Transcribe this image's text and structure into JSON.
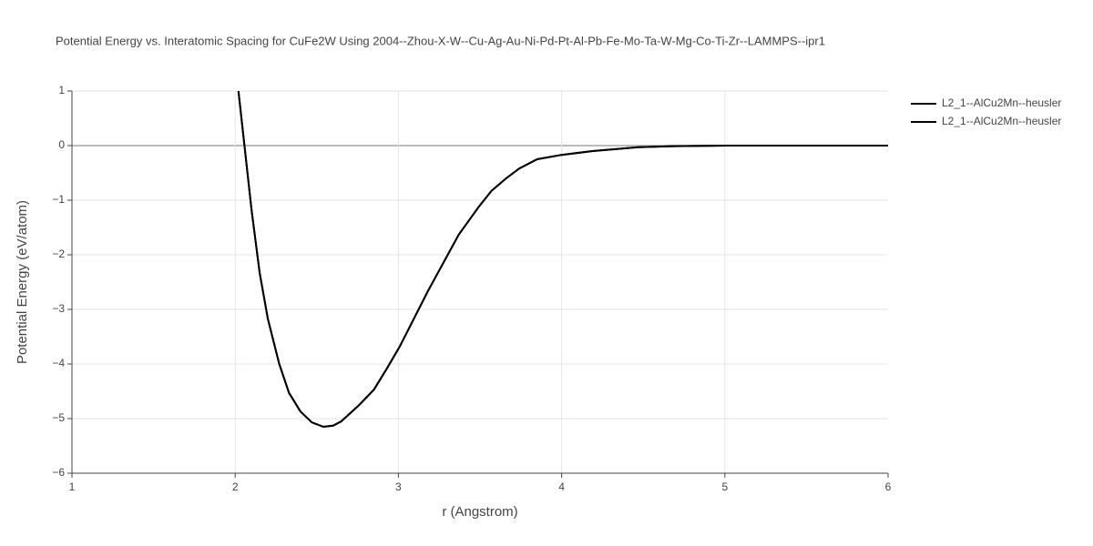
{
  "chart_data": {
    "type": "line",
    "title": "Potential Energy vs. Interatomic Spacing for CuFe2W Using 2004--Zhou-X-W--Cu-Ag-Au-Ni-Pd-Pt-Al-Pb-Fe-Mo-Ta-W-Mg-Co-Ti-Zr--LAMMPS--ipr1",
    "x_label": "r (Angstrom)",
    "y_label": "Potential Energy (eV/atom)",
    "x": [
      2.02,
      2.1,
      2.15,
      2.2,
      2.27,
      2.33,
      2.4,
      2.47,
      2.54,
      2.6,
      2.65,
      2.76,
      2.85,
      2.93,
      3.01,
      3.18,
      3.37,
      3.49,
      3.57,
      3.66,
      3.74,
      3.85,
      4.0,
      4.19,
      4.47,
      4.69,
      5.02,
      6.0
    ],
    "series": [
      {
        "name": "L2_1--AlCu2Mn--heusler",
        "color": "#000000",
        "values": [
          1,
          -1.17,
          -2.33,
          -3.17,
          -4.0,
          -4.53,
          -4.87,
          -5.07,
          -5.15,
          -5.13,
          -5.05,
          -4.75,
          -4.47,
          -4.08,
          -3.67,
          -2.67,
          -1.63,
          -1.13,
          -0.83,
          -0.6,
          -0.42,
          -0.25,
          -0.17,
          -0.1,
          -0.03,
          -0.01,
          0,
          0
        ]
      },
      {
        "name": "L2_1--AlCu2Mn--heusler",
        "color": "#000000",
        "values": [
          1,
          -1.17,
          -2.33,
          -3.17,
          -4.0,
          -4.53,
          -4.87,
          -5.07,
          -5.15,
          -5.13,
          -5.05,
          -4.75,
          -4.47,
          -4.08,
          -3.67,
          -2.67,
          -1.63,
          -1.13,
          -0.83,
          -0.6,
          -0.42,
          -0.25,
          -0.17,
          -0.1,
          -0.03,
          -0.01,
          0,
          0
        ]
      }
    ],
    "xlim": [
      1,
      6
    ],
    "xticks": [
      1,
      2,
      3,
      4,
      5,
      6
    ],
    "ylim": [
      -6,
      1
    ],
    "yticks": [
      {
        "value": -6,
        "label": "−6"
      },
      {
        "value": -5,
        "label": "−5"
      },
      {
        "value": -4,
        "label": "−4"
      },
      {
        "value": -3,
        "label": "−3"
      },
      {
        "value": -2,
        "label": "−2"
      },
      {
        "value": -1,
        "label": "−1"
      },
      0,
      1
    ],
    "grid": true,
    "legend": "top-right"
  }
}
